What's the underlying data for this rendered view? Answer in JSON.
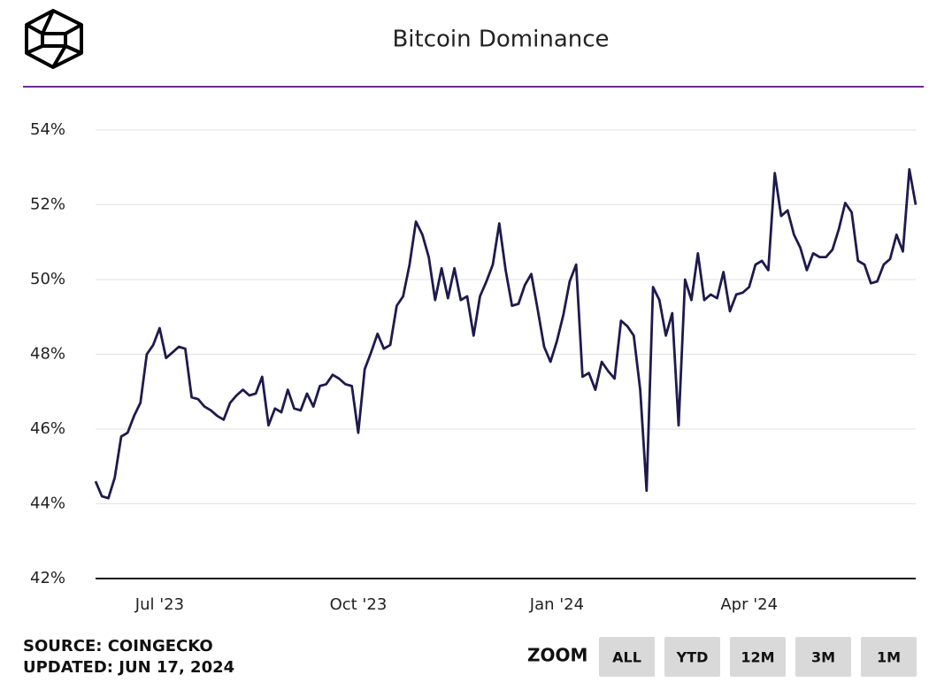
{
  "chart_data": {
    "type": "line",
    "title": "Bitcoin Dominance",
    "source": "SOURCE: COINGECKO",
    "updated": "UPDATED: JUN 17, 2024",
    "zoom": {
      "label": "ZOOM",
      "buttons": [
        "ALL",
        "YTD",
        "12M",
        "3M",
        "1M"
      ]
    },
    "categories": [
      null,
      null,
      null,
      null,
      null,
      null,
      null,
      null,
      null,
      null,
      "Jul '23",
      null,
      null,
      null,
      null,
      null,
      null,
      null,
      null,
      null,
      null,
      null,
      null,
      null,
      null,
      null,
      null,
      null,
      null,
      null,
      null,
      null,
      null,
      null,
      null,
      null,
      null,
      null,
      null,
      null,
      null,
      "Oct '23",
      null,
      null,
      null,
      null,
      null,
      null,
      null,
      null,
      null,
      null,
      null,
      null,
      null,
      null,
      null,
      null,
      null,
      null,
      null,
      null,
      null,
      null,
      null,
      null,
      null,
      null,
      null,
      null,
      null,
      null,
      "Jan '24",
      null,
      null,
      null,
      null,
      null,
      null,
      null,
      null,
      null,
      null,
      null,
      null,
      null,
      null,
      null,
      null,
      null,
      null,
      null,
      null,
      null,
      null,
      null,
      null,
      null,
      null,
      null,
      null,
      null,
      "Apr '24",
      null,
      null,
      null,
      null,
      null,
      null,
      null,
      null,
      null,
      null,
      null,
      null,
      null,
      null,
      null,
      null,
      null,
      null,
      null,
      null,
      null,
      null,
      null,
      null,
      null,
      null
    ],
    "series": [
      {
        "color": "#1f1a4d",
        "values": [
          44.6,
          44.2,
          44.15,
          44.7,
          45.8,
          45.9,
          46.35,
          46.7,
          48.0,
          48.25,
          48.7,
          47.9,
          48.05,
          48.2,
          48.15,
          46.85,
          46.8,
          46.6,
          46.5,
          46.35,
          46.25,
          46.7,
          46.9,
          47.05,
          46.9,
          46.95,
          47.4,
          46.1,
          46.55,
          46.45,
          47.05,
          46.55,
          46.5,
          46.95,
          46.6,
          47.15,
          47.2,
          47.45,
          47.35,
          47.2,
          47.15,
          45.9,
          47.6,
          48.05,
          48.55,
          48.15,
          48.25,
          49.3,
          49.55,
          50.4,
          51.55,
          51.2,
          50.6,
          49.45,
          50.3,
          49.5,
          50.3,
          49.45,
          49.55,
          48.5,
          49.55,
          49.95,
          50.4,
          51.5,
          50.25,
          49.3,
          49.35,
          49.85,
          50.15,
          49.2,
          48.2,
          47.8,
          48.35,
          49.05,
          49.95,
          50.4,
          47.4,
          47.5,
          47.05,
          47.8,
          47.55,
          47.35,
          48.9,
          48.75,
          48.5,
          47.05,
          44.35,
          49.8,
          49.45,
          48.5,
          49.1,
          46.1,
          50.0,
          49.45,
          50.7,
          49.45,
          49.6,
          49.5,
          50.2,
          49.15,
          49.6,
          49.65,
          49.8,
          50.4,
          50.5,
          50.25,
          52.85,
          51.7,
          51.85,
          51.2,
          50.85,
          50.25,
          50.7,
          50.6,
          50.6,
          50.8,
          51.35,
          52.05,
          51.8,
          50.5,
          50.4,
          49.9,
          49.95,
          50.4,
          50.55,
          51.2,
          50.75,
          52.95,
          52.0
        ]
      }
    ],
    "ylim": [
      42,
      54
    ],
    "yticks": [
      {
        "value": 42,
        "label": "42%"
      },
      {
        "value": 44,
        "label": "44%"
      },
      {
        "value": 46,
        "label": "46%"
      },
      {
        "value": 48,
        "label": "48%"
      },
      {
        "value": 50,
        "label": "50%"
      },
      {
        "value": 52,
        "label": "52%"
      },
      {
        "value": 54,
        "label": "54%"
      }
    ],
    "grid": true
  }
}
